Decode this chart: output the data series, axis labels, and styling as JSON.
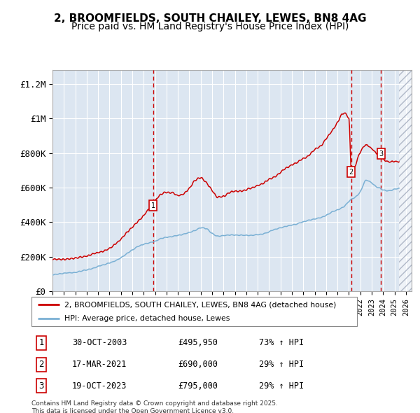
{
  "title": "2, BROOMFIELDS, SOUTH CHAILEY, LEWES, BN8 4AG",
  "subtitle": "Price paid vs. HM Land Registry's House Price Index (HPI)",
  "xlim": [
    1995.0,
    2026.5
  ],
  "ylim": [
    0,
    1280000
  ],
  "yticks": [
    0,
    200000,
    400000,
    600000,
    800000,
    1000000,
    1200000
  ],
  "ytick_labels": [
    "£0",
    "£200K",
    "£400K",
    "£600K",
    "£800K",
    "£1M",
    "£1.2M"
  ],
  "background_color": "#dce6f1",
  "hpi_line_color": "#7ab0d4",
  "property_line_color": "#cc0000",
  "transaction_line_color": "#cc0000",
  "transactions": [
    {
      "x": 2003.83,
      "price": 495950,
      "label": "1",
      "date": "30-OCT-2003",
      "change": "73% ↑ HPI"
    },
    {
      "x": 2021.21,
      "price": 690000,
      "label": "2",
      "date": "17-MAR-2021",
      "change": "29% ↑ HPI"
    },
    {
      "x": 2023.8,
      "price": 795000,
      "label": "3",
      "date": "19-OCT-2023",
      "change": "29% ↑ HPI"
    }
  ],
  "legend_items": [
    "2, BROOMFIELDS, SOUTH CHAILEY, LEWES, BN8 4AG (detached house)",
    "HPI: Average price, detached house, Lewes"
  ],
  "copyright": "Contains HM Land Registry data © Crown copyright and database right 2025.\nThis data is licensed under the Open Government Licence v3.0.",
  "title_fontsize": 11,
  "subtitle_fontsize": 10,
  "tick_fontsize": 9
}
